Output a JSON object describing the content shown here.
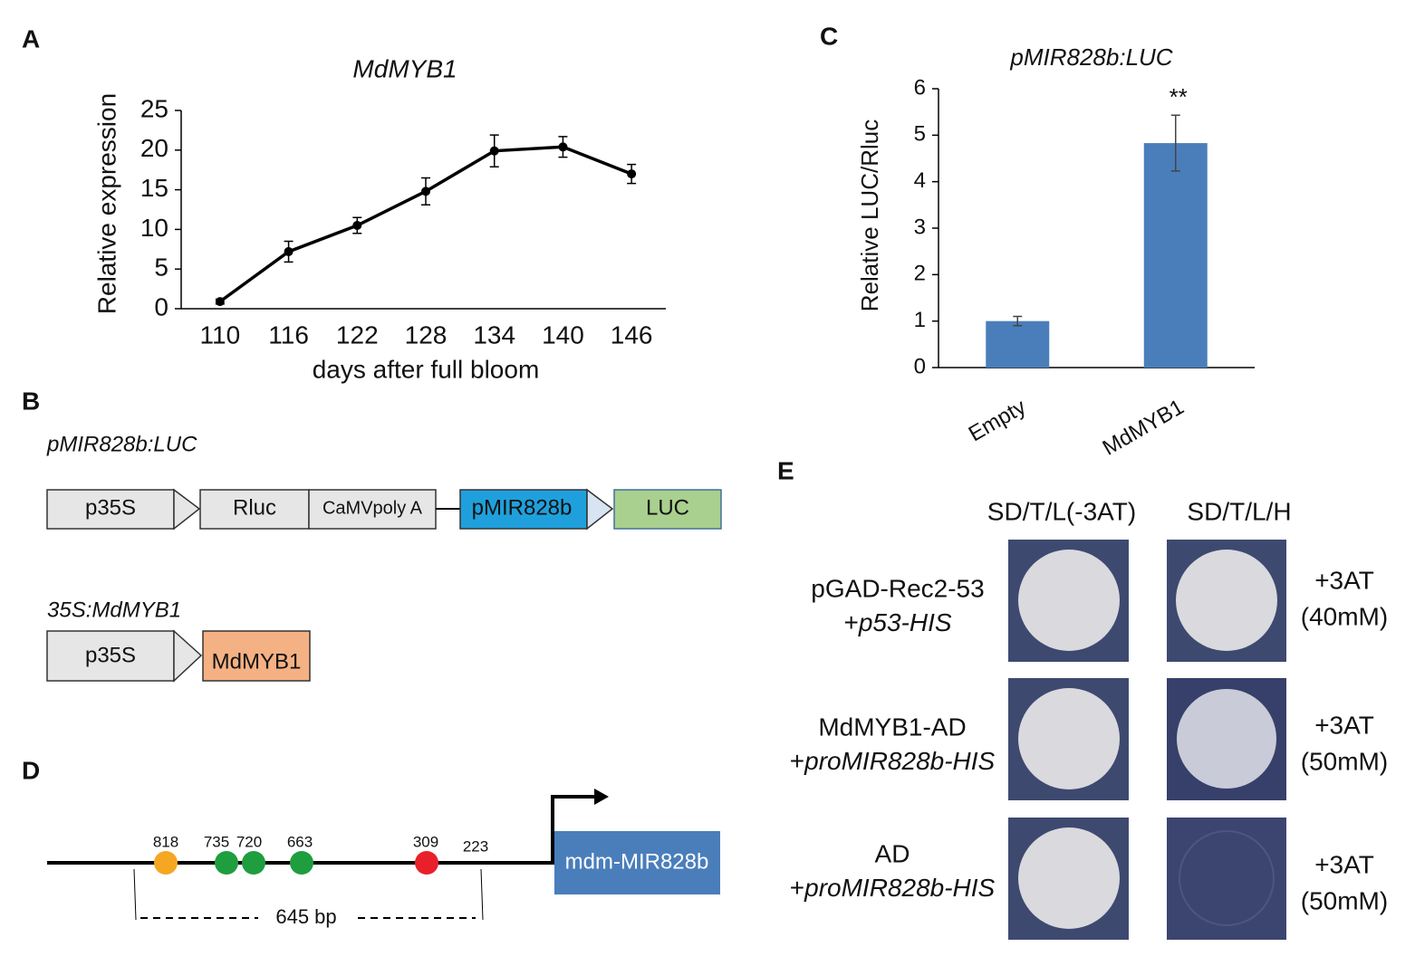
{
  "chart_data": [
    {
      "type": "line",
      "title": "MdMYB1",
      "x_label": "days after full bloom",
      "y_label": "Relative expression",
      "categories": [
        "110",
        "116",
        "122",
        "128",
        "134",
        "140",
        "146"
      ],
      "values": [
        0.9,
        7.2,
        10.5,
        14.8,
        19.9,
        20.4,
        17.0
      ],
      "errors": [
        0.3,
        1.3,
        1.0,
        1.7,
        2.0,
        1.3,
        1.2
      ],
      "color": "#000000",
      "ylim": [
        0,
        25
      ],
      "yticks": [
        0,
        5,
        10,
        15,
        20,
        25
      ]
    },
    {
      "type": "bar",
      "title": "pMIR828b:LUC",
      "y_label": "Relative LUC/Rluc",
      "categories": [
        "Empty",
        "MdMYB1"
      ],
      "values": [
        1.0,
        4.83
      ],
      "errors": [
        0.1,
        0.6
      ],
      "value_annotations": [
        null,
        "**"
      ],
      "color": "#4a7ebb",
      "ylim": [
        0,
        6
      ],
      "yticks": [
        0,
        1,
        2,
        3,
        4,
        5,
        6
      ]
    }
  ],
  "panel_labels": [
    "A",
    "B",
    "C",
    "D",
    "E"
  ],
  "constructs": {
    "reporter": {
      "title": "pMIR828b:LUC",
      "parts": [
        "p35S",
        "Rluc",
        "CaMVpoly A",
        "pMIR828b",
        "LUC"
      ]
    },
    "effector": {
      "title": "35S:MdMYB1",
      "parts": [
        "p35S",
        "MdMYB1"
      ]
    }
  },
  "promoter": {
    "sites": [
      818,
      735,
      720,
      663,
      309
    ],
    "end_label": 223,
    "length": "645 bp",
    "gene": "mdm-MIR828b"
  },
  "yeast": {
    "columns": [
      "SD/T/L(-3AT)",
      "SD/T/L/H"
    ],
    "rows": [
      {
        "bait_line1": "pGAD-Rec2-53",
        "prefix": "+",
        "prey": "p53-HIS",
        "condition": "+3AT",
        "dose": "(40mM)"
      },
      {
        "bait_line1": "MdMYB1-AD",
        "prefix": "+",
        "prey": "proMIR828b-HIS",
        "condition": "+3AT",
        "dose": "(50mM)"
      },
      {
        "bait_line1": "AD",
        "prefix": "+",
        "prey": "proMIR828b-HIS",
        "condition": "+3AT",
        "dose": "(50mM)"
      }
    ]
  }
}
